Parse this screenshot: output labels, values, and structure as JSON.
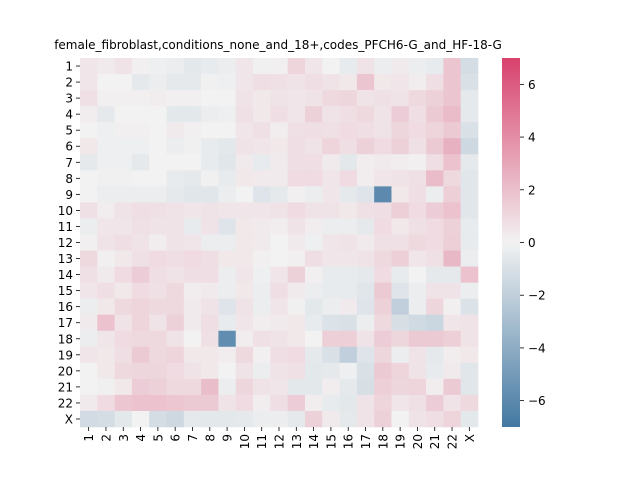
{
  "chart_data": {
    "type": "heatmap",
    "title": "female_fibroblast,conditions_none_and_18+,codes_PFCH6-G_and_HF-18-G",
    "xlabel": "",
    "ylabel": "",
    "rows": [
      "1",
      "2",
      "3",
      "4",
      "5",
      "6",
      "7",
      "8",
      "9",
      "10",
      "11",
      "12",
      "13",
      "14",
      "15",
      "16",
      "17",
      "18",
      "19",
      "20",
      "21",
      "22",
      "X"
    ],
    "columns": [
      "1",
      "2",
      "3",
      "4",
      "5",
      "6",
      "7",
      "8",
      "9",
      "10",
      "11",
      "12",
      "13",
      "14",
      "15",
      "16",
      "17",
      "18",
      "19",
      "20",
      "21",
      "22",
      "X"
    ],
    "values": [
      [
        0.5,
        0.3,
        0.6,
        0.1,
        -0.2,
        -0.3,
        -0.6,
        -0.4,
        -0.3,
        0.5,
        -0.1,
        0.1,
        1.2,
        0.5,
        0.0,
        -0.4,
        0.6,
        -0.3,
        0.3,
        -0.3,
        -0.4,
        1.8,
        -1.2
      ],
      [
        0.5,
        0.0,
        0.0,
        -0.5,
        -0.3,
        -0.5,
        -0.5,
        -0.1,
        -0.2,
        0.5,
        0.8,
        0.7,
        0.6,
        0.8,
        0.6,
        0.4,
        1.8,
        0.4,
        0.5,
        0.2,
        0.8,
        1.8,
        -1.0
      ],
      [
        0.7,
        0.1,
        0.1,
        0.1,
        0.2,
        0.1,
        0.1,
        0.0,
        0.0,
        0.6,
        0.4,
        0.6,
        0.5,
        0.6,
        1.0,
        1.1,
        0.6,
        0.7,
        0.6,
        1.0,
        1.3,
        1.8,
        -0.5
      ],
      [
        0.2,
        -0.5,
        0.0,
        0.0,
        0.0,
        -0.6,
        -0.6,
        -0.3,
        -0.2,
        0.7,
        0.4,
        0.8,
        0.5,
        1.3,
        0.6,
        0.8,
        1.0,
        0.6,
        1.5,
        0.8,
        1.6,
        2.2,
        -0.5
      ],
      [
        0.0,
        -0.2,
        0.1,
        0.1,
        0.0,
        0.3,
        0.1,
        0.0,
        0.0,
        0.5,
        0.7,
        0.2,
        0.7,
        0.8,
        0.7,
        0.9,
        0.8,
        0.6,
        1.1,
        0.9,
        1.2,
        1.6,
        -1.0
      ],
      [
        0.4,
        -0.2,
        -0.2,
        -0.2,
        0.0,
        -0.3,
        -0.1,
        -0.4,
        -0.6,
        0.6,
        0.5,
        0.4,
        0.8,
        0.6,
        1.2,
        0.8,
        1.3,
        0.9,
        1.3,
        0.7,
        1.6,
        2.6,
        -1.5
      ],
      [
        -0.5,
        -0.2,
        -0.2,
        -0.5,
        0.0,
        0.0,
        0.0,
        -0.4,
        -0.7,
        0.3,
        -0.4,
        0.3,
        0.8,
        0.8,
        0.3,
        -0.6,
        0.2,
        0.3,
        0.2,
        0.1,
        0.8,
        1.9,
        -0.5
      ],
      [
        0.0,
        -0.1,
        -0.1,
        0.0,
        0.0,
        -0.4,
        -0.5,
        -0.1,
        -0.4,
        0.4,
        0.3,
        0.3,
        0.9,
        0.9,
        0.5,
        0.9,
        0.2,
        0.5,
        0.6,
        0.7,
        2.2,
        1.0,
        -0.7
      ],
      [
        0.0,
        -0.3,
        -0.3,
        -0.3,
        -0.3,
        -0.5,
        -0.7,
        -0.7,
        -0.3,
        0.0,
        -0.8,
        -0.5,
        0.1,
        -0.3,
        0.5,
        -0.5,
        -0.8,
        -6.0,
        0.4,
        0.8,
        -0.3,
        1.4,
        -0.7
      ],
      [
        0.7,
        0.2,
        0.6,
        0.8,
        0.7,
        0.6,
        0.5,
        0.6,
        0.5,
        0.5,
        0.5,
        0.6,
        0.9,
        0.6,
        0.6,
        0.4,
        0.7,
        0.8,
        1.4,
        0.9,
        1.5,
        1.9,
        -0.7
      ],
      [
        -0.3,
        0.5,
        0.5,
        0.7,
        0.6,
        0.6,
        -0.4,
        0.6,
        -0.8,
        0.4,
        0.3,
        0.2,
        0.6,
        0.2,
        -0.3,
        -0.3,
        -0.5,
        0.9,
        0.4,
        0.7,
        0.9,
        1.3,
        -0.4
      ],
      [
        0.1,
        0.6,
        0.8,
        0.6,
        0.2,
        0.6,
        0.5,
        -0.3,
        -0.3,
        0.4,
        0.3,
        0.0,
        0.3,
        -0.2,
        0.5,
        0.6,
        0.3,
        0.7,
        0.7,
        1.0,
        0.9,
        1.4,
        -0.4
      ],
      [
        1.0,
        0.1,
        0.4,
        0.7,
        0.9,
        0.8,
        0.9,
        0.8,
        0.4,
        0.4,
        0.1,
        0.0,
        0.1,
        0.8,
        0.5,
        0.5,
        0.6,
        1.0,
        1.4,
        0.5,
        0.7,
        2.3,
        -0.3
      ],
      [
        0.7,
        0.3,
        0.9,
        1.5,
        0.8,
        0.6,
        0.8,
        0.8,
        -0.3,
        0.5,
        -0.2,
        0.5,
        1.3,
        0.1,
        -0.4,
        -0.4,
        -0.5,
        0.9,
        -0.4,
        0.0,
        -0.5,
        -0.5,
        1.9
      ],
      [
        0.5,
        0.8,
        0.4,
        0.9,
        0.7,
        1.0,
        0.2,
        0.3,
        -0.3,
        0.4,
        -0.3,
        0.8,
        0.3,
        -0.3,
        -0.4,
        -0.4,
        -0.7,
        1.6,
        -0.8,
        -0.3,
        0.6,
        0.6,
        -0.3
      ],
      [
        -0.3,
        0.4,
        1.0,
        1.2,
        1.0,
        1.0,
        0.3,
        0.6,
        -0.8,
        0.6,
        -0.3,
        0.5,
        -0.1,
        -0.6,
        -0.3,
        0.3,
        -0.8,
        1.3,
        -2.0,
        -0.3,
        1.1,
        0.1,
        -0.9
      ],
      [
        0.3,
        1.9,
        0.6,
        1.2,
        0.6,
        1.3,
        0.3,
        0.8,
        -0.4,
        0.5,
        0.2,
        0.3,
        0.4,
        -0.4,
        -0.9,
        -1.0,
        -0.3,
        1.0,
        -1.1,
        -1.4,
        -1.6,
        0.5,
        0.6
      ],
      [
        -0.3,
        0.5,
        0.9,
        1.0,
        1.0,
        0.6,
        0.0,
        0.7,
        -5.8,
        0.2,
        0.7,
        0.6,
        0.4,
        0.0,
        1.4,
        1.4,
        0.6,
        1.5,
        1.1,
        1.6,
        1.6,
        1.4,
        0.6
      ],
      [
        0.5,
        0.4,
        0.8,
        1.6,
        1.0,
        1.2,
        0.4,
        0.4,
        0.2,
        1.0,
        0.1,
        0.8,
        0.9,
        -0.5,
        -1.0,
        -2.0,
        -0.8,
        1.1,
        -0.3,
        0.6,
        -0.5,
        0.2,
        0.4
      ],
      [
        0.0,
        0.4,
        1.0,
        1.1,
        1.1,
        0.9,
        0.6,
        0.4,
        0.0,
        0.6,
        -0.3,
        0.6,
        0.7,
        -0.6,
        -0.5,
        -0.2,
        -1.0,
        1.6,
        1.2,
        0.6,
        -0.4,
        0.3,
        -0.7
      ],
      [
        0.0,
        -0.1,
        0.4,
        1.5,
        1.3,
        1.0,
        1.0,
        2.1,
        -0.3,
        1.1,
        0.6,
        0.5,
        -0.6,
        -0.6,
        0.2,
        -0.5,
        -1.1,
        1.4,
        1.1,
        1.2,
        0.2,
        1.6,
        -0.7
      ],
      [
        0.3,
        0.9,
        1.7,
        1.9,
        1.9,
        1.7,
        1.6,
        1.6,
        0.6,
        0.9,
        0.2,
        0.8,
        1.5,
        0.2,
        -0.4,
        -0.6,
        0.6,
        1.2,
        0.5,
        0.7,
        1.5,
        0.6,
        1.0
      ],
      [
        -1.3,
        -1.2,
        -0.6,
        0.0,
        -1.2,
        -1.5,
        -0.5,
        -0.6,
        -0.6,
        -0.5,
        -0.3,
        -0.3,
        -0.5,
        1.3,
        0.3,
        -0.5,
        0.6,
        1.3,
        0.0,
        0.6,
        0.8,
        1.2,
        -0.6
      ]
    ],
    "vmin": -7,
    "vmax": 7,
    "colormap": {
      "low": "#4378a2",
      "mid": "#f2f2f2",
      "high": "#d8426d"
    },
    "colorbar_ticks": [
      -6,
      -4,
      -2,
      0,
      2,
      4,
      6
    ]
  }
}
